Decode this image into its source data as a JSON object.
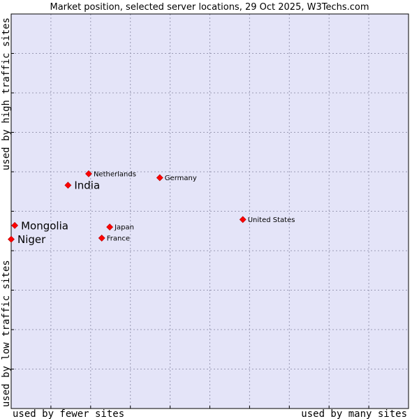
{
  "chart_data": {
    "type": "scatter",
    "title": "Market position, selected server locations, 29 Oct 2025, W3Techs.com",
    "xlabel_left": "used by fewer sites",
    "xlabel_right": "used by many sites",
    "ylabel_bottom": "used by low traffic sites",
    "ylabel_top": "used by high traffic sites",
    "xlim": [
      0,
      100
    ],
    "ylim": [
      0,
      100
    ],
    "grid": true,
    "points": [
      {
        "name": "Netherlands",
        "x": 19.5,
        "y": 59.5,
        "highlight": false
      },
      {
        "name": "India",
        "x": 14.3,
        "y": 56.6,
        "highlight": true
      },
      {
        "name": "Germany",
        "x": 37.4,
        "y": 58.5,
        "highlight": false
      },
      {
        "name": "United States",
        "x": 58.3,
        "y": 47.9,
        "highlight": false
      },
      {
        "name": "Mongolia",
        "x": 0.9,
        "y": 46.4,
        "highlight": true
      },
      {
        "name": "Japan",
        "x": 24.8,
        "y": 46.0,
        "highlight": false
      },
      {
        "name": "France",
        "x": 22.8,
        "y": 43.2,
        "highlight": false
      },
      {
        "name": "Niger",
        "x": 0.0,
        "y": 42.9,
        "highlight": true
      }
    ]
  },
  "colors": {
    "plot_bg": "#e4e4f8",
    "grid": "#9a9ab4",
    "marker": "#ff0000"
  }
}
